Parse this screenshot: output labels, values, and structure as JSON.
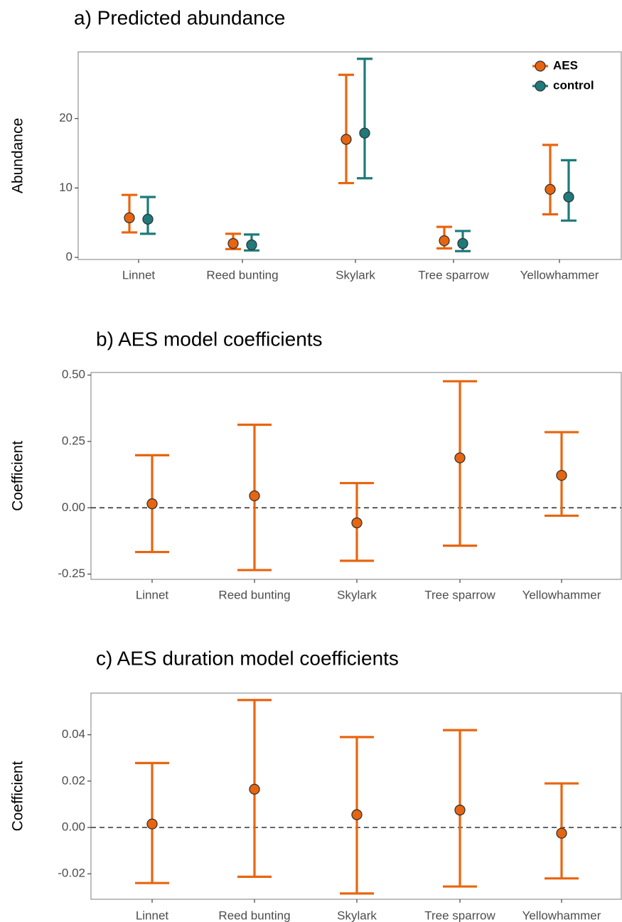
{
  "colors": {
    "aes": "#e8650f",
    "control": "#1f7a7a",
    "panel_border": "#9a9a9a",
    "point_stroke": "#333333",
    "zero_line": "#333333"
  },
  "chart_data": [
    {
      "type": "scatter",
      "title": "a) Predicted abundance",
      "ylabel": "Abundance",
      "categories": [
        "Linnet",
        "Reed bunting",
        "Skylark",
        "Tree sparrow",
        "Yellowhammer"
      ],
      "ylim": [
        -0.3,
        29.6
      ],
      "yticks": [
        0,
        10,
        20
      ],
      "ytick_labels": [
        "0",
        "10",
        "20"
      ],
      "grid": false,
      "legend": {
        "position": "top-right",
        "labels": [
          "AES",
          "control"
        ]
      },
      "series": [
        {
          "name": "AES",
          "color_key": "aes",
          "values": [
            5.7,
            2.0,
            17.0,
            2.4,
            9.8
          ],
          "lower": [
            3.6,
            1.2,
            10.7,
            1.3,
            6.2
          ],
          "upper": [
            9.0,
            3.4,
            26.3,
            4.4,
            16.2
          ]
        },
        {
          "name": "control",
          "color_key": "control",
          "values": [
            5.5,
            1.8,
            17.9,
            2.0,
            8.7
          ],
          "lower": [
            3.4,
            1.0,
            11.4,
            0.9,
            5.3
          ],
          "upper": [
            8.7,
            3.3,
            28.6,
            3.8,
            14.0
          ]
        }
      ]
    },
    {
      "type": "scatter",
      "title": "b) AES model coefficients",
      "ylabel": "Coefficient",
      "categories": [
        "Linnet",
        "Reed bunting",
        "Skylark",
        "Tree sparrow",
        "Yellowhammer"
      ],
      "ylim": [
        -0.27,
        0.51
      ],
      "yticks": [
        -0.25,
        0,
        0.25,
        0.5
      ],
      "ytick_labels": [
        "-0.25",
        "0.00",
        "0.25",
        "0.50"
      ],
      "zero_line": true,
      "grid": false,
      "series": [
        {
          "color_key": "aes",
          "values": [
            0.015,
            0.045,
            -0.057,
            0.188,
            0.122
          ],
          "lower": [
            -0.167,
            -0.235,
            -0.2,
            -0.143,
            -0.03
          ],
          "upper": [
            0.198,
            0.313,
            0.093,
            0.477,
            0.285
          ]
        }
      ]
    },
    {
      "type": "scatter",
      "title": "c) AES duration model coefficients",
      "ylabel": "Coefficient",
      "categories": [
        "Linnet",
        "Reed bunting",
        "Skylark",
        "Tree sparrow",
        "Yellowhammer"
      ],
      "ylim": [
        -0.031,
        0.058
      ],
      "yticks": [
        -0.02,
        0,
        0.02,
        0.04
      ],
      "ytick_labels": [
        "-0.02",
        "0.00",
        "0.02",
        "0.04"
      ],
      "zero_line": true,
      "grid": false,
      "series": [
        {
          "color_key": "aes",
          "values": [
            0.0015,
            0.0165,
            0.0055,
            0.0075,
            -0.0025
          ],
          "lower": [
            -0.024,
            -0.0213,
            -0.0285,
            -0.0255,
            -0.022
          ],
          "upper": [
            0.0278,
            0.055,
            0.039,
            0.042,
            0.019
          ]
        }
      ]
    }
  ]
}
